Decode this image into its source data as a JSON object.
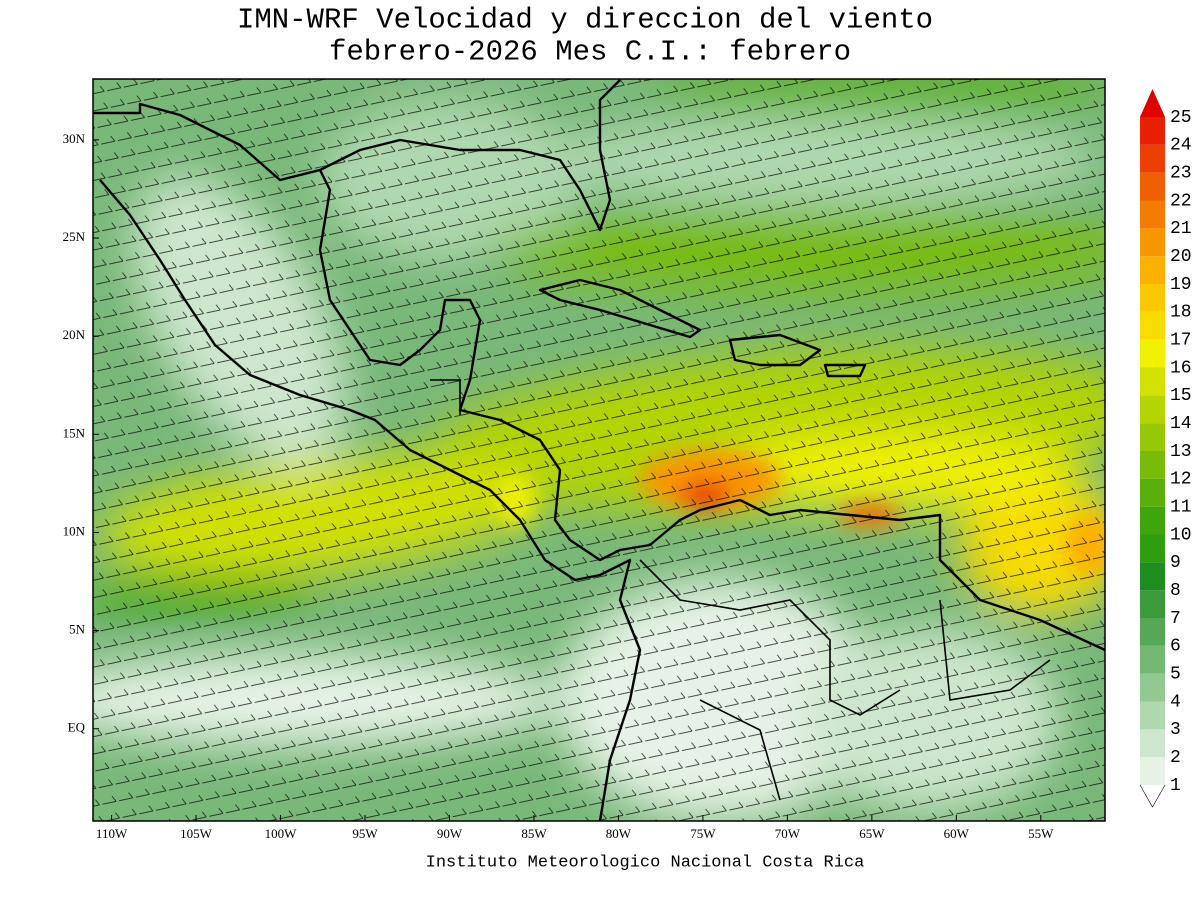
{
  "header": {
    "title_line1": "IMN-WRF Velocidad y direccion del viento",
    "title_line2": "febrero-2026 Mes C.I.: febrero"
  },
  "map": {
    "lon_lim": [
      -111.1,
      -51.2
    ],
    "lat_lim": [
      -4.7,
      33.1
    ],
    "lon_ticks": [
      {
        "value": -110,
        "label": "110W"
      },
      {
        "value": -105,
        "label": "105W"
      },
      {
        "value": -100,
        "label": "100W"
      },
      {
        "value": -95,
        "label": "95W"
      },
      {
        "value": -90,
        "label": "90W"
      },
      {
        "value": -85,
        "label": "85W"
      },
      {
        "value": -80,
        "label": "80W"
      },
      {
        "value": -75,
        "label": "75W"
      },
      {
        "value": -70,
        "label": "70W"
      },
      {
        "value": -65,
        "label": "65W"
      },
      {
        "value": -60,
        "label": "60W"
      },
      {
        "value": -55,
        "label": "55W"
      }
    ],
    "lat_ticks": [
      {
        "value": 30,
        "label": "30N"
      },
      {
        "value": 25,
        "label": "25N"
      },
      {
        "value": 20,
        "label": "20N"
      },
      {
        "value": 15,
        "label": "15N"
      },
      {
        "value": 10,
        "label": "10N"
      },
      {
        "value": 5,
        "label": "5N"
      },
      {
        "value": 0,
        "label": "EQ"
      }
    ]
  },
  "colorbar": {
    "levels": [
      1,
      2,
      3,
      4,
      5,
      6,
      7,
      8,
      9,
      10,
      11,
      12,
      13,
      14,
      15,
      16,
      17,
      18,
      19,
      20,
      21,
      22,
      23,
      24,
      25
    ],
    "colors": [
      "#e6f2e6",
      "#cde6cd",
      "#b0d8b0",
      "#92c892",
      "#74b874",
      "#56a856",
      "#3a9a3a",
      "#1f8c1f",
      "#2e9e0e",
      "#3ea60a",
      "#5ab00a",
      "#78bc08",
      "#96c806",
      "#b4d404",
      "#d2e002",
      "#f0f000",
      "#f8dc00",
      "#fcc800",
      "#fcb000",
      "#f89600",
      "#f47c00",
      "#f06000",
      "#ec4000",
      "#e82000",
      "#e00000"
    ]
  },
  "footer": {
    "credit": "Instituto Meteorologico Nacional Costa Rica"
  }
}
